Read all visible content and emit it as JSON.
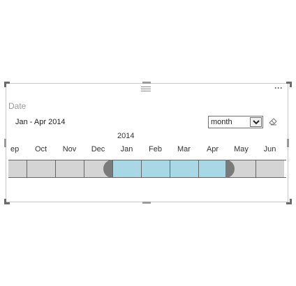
{
  "slicer": {
    "title": "Date",
    "range_text": "Jan - Apr 2014",
    "granularity": {
      "selected": "month"
    },
    "year_label": "2014",
    "months": [
      {
        "label": "Sep",
        "selected": false
      },
      {
        "label": "Oct",
        "selected": false
      },
      {
        "label": "Nov",
        "selected": false
      },
      {
        "label": "Dec",
        "selected": false
      },
      {
        "label": "Jan",
        "selected": true
      },
      {
        "label": "Feb",
        "selected": true
      },
      {
        "label": "Mar",
        "selected": true
      },
      {
        "label": "Apr",
        "selected": true
      },
      {
        "label": "May",
        "selected": false
      },
      {
        "label": "Jun",
        "selected": false
      }
    ],
    "colors": {
      "selected": "#a9d7e6",
      "unselected": "#d4d4d4",
      "handle": "#7a7a7a"
    },
    "icons": {
      "more": "more-options-icon",
      "grip": "drag-grip-icon",
      "clear": "eraser-icon",
      "dropdown": "chevron-down-icon"
    }
  }
}
